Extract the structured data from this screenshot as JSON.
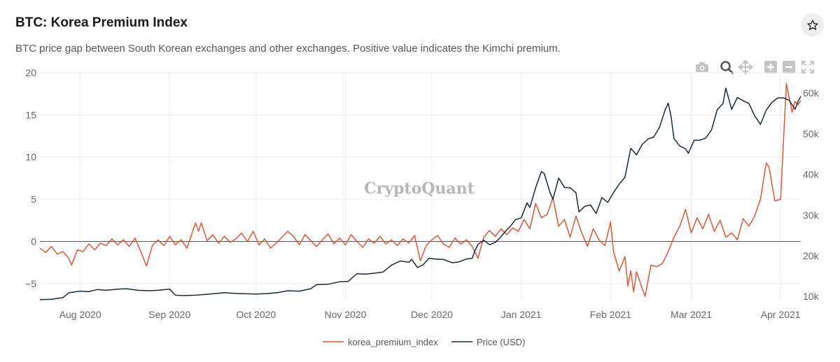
{
  "header": {
    "title": "BTC: Korea Premium Index",
    "subtitle": "BTC price gap between South Korean exchanges and other exchanges. Positive value indicates the Kimchi premium."
  },
  "icons": {
    "favorite": "star-icon",
    "toolbar": [
      "camera-icon",
      "zoom-icon",
      "pan-icon",
      "zoom-in-icon",
      "zoom-out-icon",
      "autoscale-icon"
    ]
  },
  "colors": {
    "premium": "#d9583b",
    "price": "#1c2833",
    "grid": "#ececec",
    "zero_line": "#555555",
    "axis_text": "#666666"
  },
  "watermark": "CryptoQuant",
  "chart_data": {
    "type": "line",
    "x_start": "2020-07-18",
    "x_end": "2021-04-08",
    "x_ticks": [
      {
        "date": "2020-08-01",
        "label": "Aug 2020"
      },
      {
        "date": "2020-09-01",
        "label": "Sep 2020"
      },
      {
        "date": "2020-10-01",
        "label": "Oct 2020"
      },
      {
        "date": "2020-11-01",
        "label": "Nov 2020"
      },
      {
        "date": "2020-12-01",
        "label": "Dec 2020"
      },
      {
        "date": "2021-01-01",
        "label": "Jan 2021"
      },
      {
        "date": "2021-02-01",
        "label": "Feb 2021"
      },
      {
        "date": "2021-03-01",
        "label": "Mar 2021"
      },
      {
        "date": "2021-04-01",
        "label": "Apr 2021"
      }
    ],
    "y_left": {
      "range": [
        -7,
        20
      ],
      "ticks": [
        20,
        15,
        10,
        5,
        0,
        -5
      ],
      "tick_labels": [
        "20",
        "15",
        "10",
        "5",
        "0",
        "−5"
      ]
    },
    "y_right": {
      "range": [
        9000,
        65000
      ],
      "ticks": [
        60000,
        50000,
        40000,
        30000,
        20000,
        10000
      ],
      "tick_labels": [
        "60k",
        "50k",
        "40k",
        "30k",
        "20k",
        "10k"
      ]
    },
    "legend": {
      "placement": "bottom-center"
    },
    "series": [
      {
        "name": "korea_premium_index",
        "axis": "left",
        "points": [
          [
            "2020-07-18",
            -0.8
          ],
          [
            "2020-07-20",
            -1.3
          ],
          [
            "2020-07-22",
            -0.6
          ],
          [
            "2020-07-24",
            -1.5
          ],
          [
            "2020-07-26",
            -1.2
          ],
          [
            "2020-07-28",
            -2.0
          ],
          [
            "2020-07-29",
            -2.8
          ],
          [
            "2020-07-31",
            -1.0
          ],
          [
            "2020-08-02",
            -1.2
          ],
          [
            "2020-08-04",
            -0.3
          ],
          [
            "2020-08-06",
            -1.0
          ],
          [
            "2020-08-08",
            -0.2
          ],
          [
            "2020-08-10",
            -0.5
          ],
          [
            "2020-08-12",
            0.3
          ],
          [
            "2020-08-14",
            -0.4
          ],
          [
            "2020-08-16",
            0.2
          ],
          [
            "2020-08-18",
            -0.6
          ],
          [
            "2020-08-20",
            0.4
          ],
          [
            "2020-08-22",
            -1.2
          ],
          [
            "2020-08-24",
            -2.9
          ],
          [
            "2020-08-26",
            -0.5
          ],
          [
            "2020-08-28",
            0.2
          ],
          [
            "2020-08-30",
            -0.5
          ],
          [
            "2020-09-01",
            0.6
          ],
          [
            "2020-09-03",
            -0.4
          ],
          [
            "2020-09-05",
            0.2
          ],
          [
            "2020-09-07",
            -0.8
          ],
          [
            "2020-09-09",
            1.2
          ],
          [
            "2020-09-10",
            2.2
          ],
          [
            "2020-09-11",
            1.2
          ],
          [
            "2020-09-12",
            2.2
          ],
          [
            "2020-09-14",
            0.1
          ],
          [
            "2020-09-16",
            0.8
          ],
          [
            "2020-09-18",
            -0.2
          ],
          [
            "2020-09-20",
            0.6
          ],
          [
            "2020-09-22",
            -0.1
          ],
          [
            "2020-09-24",
            0.3
          ],
          [
            "2020-09-26",
            1.0
          ],
          [
            "2020-09-28",
            0.0
          ],
          [
            "2020-09-30",
            1.2
          ],
          [
            "2020-10-02",
            -0.4
          ],
          [
            "2020-10-04",
            0.3
          ],
          [
            "2020-10-06",
            -0.8
          ],
          [
            "2020-10-08",
            -0.2
          ],
          [
            "2020-10-10",
            0.5
          ],
          [
            "2020-10-12",
            1.2
          ],
          [
            "2020-10-14",
            0.6
          ],
          [
            "2020-10-16",
            -0.4
          ],
          [
            "2020-10-18",
            0.8
          ],
          [
            "2020-10-20",
            0.1
          ],
          [
            "2020-10-22",
            -0.6
          ],
          [
            "2020-10-24",
            0.2
          ],
          [
            "2020-10-26",
            0.9
          ],
          [
            "2020-10-28",
            -0.3
          ],
          [
            "2020-10-30",
            0.4
          ],
          [
            "2020-11-01",
            -0.4
          ],
          [
            "2020-11-03",
            0.8
          ],
          [
            "2020-11-05",
            0.0
          ],
          [
            "2020-11-07",
            -0.7
          ],
          [
            "2020-11-09",
            0.3
          ],
          [
            "2020-11-11",
            -0.2
          ],
          [
            "2020-11-13",
            0.6
          ],
          [
            "2020-11-15",
            -0.3
          ],
          [
            "2020-11-17",
            0.2
          ],
          [
            "2020-11-19",
            -0.5
          ],
          [
            "2020-11-21",
            0.3
          ],
          [
            "2020-11-23",
            -0.2
          ],
          [
            "2020-11-25",
            0.7
          ],
          [
            "2020-11-27",
            -2.3
          ],
          [
            "2020-11-29",
            -0.5
          ],
          [
            "2020-12-01",
            0.2
          ],
          [
            "2020-12-03",
            0.7
          ],
          [
            "2020-12-05",
            -0.3
          ],
          [
            "2020-12-07",
            -0.7
          ],
          [
            "2020-12-09",
            0.4
          ],
          [
            "2020-12-11",
            -0.3
          ],
          [
            "2020-12-13",
            0.2
          ],
          [
            "2020-12-15",
            -0.6
          ],
          [
            "2020-12-17",
            -2.0
          ],
          [
            "2020-12-19",
            0.5
          ],
          [
            "2020-12-21",
            1.3
          ],
          [
            "2020-12-23",
            0.6
          ],
          [
            "2020-12-25",
            1.5
          ],
          [
            "2020-12-27",
            0.8
          ],
          [
            "2020-12-29",
            1.6
          ],
          [
            "2020-12-31",
            1.2
          ],
          [
            "2021-01-02",
            2.6
          ],
          [
            "2021-01-04",
            1.5
          ],
          [
            "2021-01-06",
            4.5
          ],
          [
            "2021-01-08",
            2.8
          ],
          [
            "2021-01-10",
            3.2
          ],
          [
            "2021-01-12",
            5.2
          ],
          [
            "2021-01-14",
            1.8
          ],
          [
            "2021-01-16",
            2.6
          ],
          [
            "2021-01-18",
            0.5
          ],
          [
            "2021-01-20",
            3.0
          ],
          [
            "2021-01-22",
            1.0
          ],
          [
            "2021-01-24",
            -0.6
          ],
          [
            "2021-01-26",
            1.5
          ],
          [
            "2021-01-28",
            0.2
          ],
          [
            "2021-01-30",
            -0.5
          ],
          [
            "2021-02-01",
            2.3
          ],
          [
            "2021-02-02",
            -1.2
          ],
          [
            "2021-02-04",
            -3.5
          ],
          [
            "2021-02-06",
            -1.8
          ],
          [
            "2021-02-07",
            -5.3
          ],
          [
            "2021-02-08",
            -3.5
          ],
          [
            "2021-02-09",
            -6.0
          ],
          [
            "2021-02-10",
            -3.6
          ],
          [
            "2021-02-12",
            -5.6
          ],
          [
            "2021-02-13",
            -6.5
          ],
          [
            "2021-02-15",
            -2.8
          ],
          [
            "2021-02-17",
            -3.0
          ],
          [
            "2021-02-19",
            -2.6
          ],
          [
            "2021-02-21",
            -1.2
          ],
          [
            "2021-02-23",
            0.5
          ],
          [
            "2021-02-25",
            1.8
          ],
          [
            "2021-02-27",
            3.8
          ],
          [
            "2021-03-01",
            1.0
          ],
          [
            "2021-03-03",
            2.8
          ],
          [
            "2021-03-05",
            1.5
          ],
          [
            "2021-03-07",
            3.2
          ],
          [
            "2021-03-09",
            1.2
          ],
          [
            "2021-03-11",
            2.5
          ],
          [
            "2021-03-13",
            0.5
          ],
          [
            "2021-03-15",
            1.0
          ],
          [
            "2021-03-17",
            0.2
          ],
          [
            "2021-03-19",
            2.7
          ],
          [
            "2021-03-21",
            1.8
          ],
          [
            "2021-03-23",
            3.0
          ],
          [
            "2021-03-25",
            5.0
          ],
          [
            "2021-03-27",
            9.3
          ],
          [
            "2021-03-28",
            8.8
          ],
          [
            "2021-03-30",
            4.8
          ],
          [
            "2021-04-01",
            5.0
          ],
          [
            "2021-04-02",
            12.0
          ],
          [
            "2021-04-03",
            18.7
          ],
          [
            "2021-04-04",
            17.0
          ],
          [
            "2021-04-05",
            15.3
          ],
          [
            "2021-04-06",
            16.6
          ],
          [
            "2021-04-07",
            16.2
          ],
          [
            "2021-04-08",
            16.7
          ]
        ]
      },
      {
        "name": "Price (USD)",
        "axis": "right",
        "points": [
          [
            "2020-07-18",
            9200
          ],
          [
            "2020-07-22",
            9300
          ],
          [
            "2020-07-26",
            9700
          ],
          [
            "2020-07-28",
            10900
          ],
          [
            "2020-08-01",
            11300
          ],
          [
            "2020-08-04",
            11200
          ],
          [
            "2020-08-07",
            11700
          ],
          [
            "2020-08-10",
            11500
          ],
          [
            "2020-08-14",
            11800
          ],
          [
            "2020-08-17",
            11900
          ],
          [
            "2020-08-21",
            11500
          ],
          [
            "2020-08-25",
            11400
          ],
          [
            "2020-08-28",
            11500
          ],
          [
            "2020-09-01",
            11800
          ],
          [
            "2020-09-03",
            10300
          ],
          [
            "2020-09-06",
            10200
          ],
          [
            "2020-09-10",
            10300
          ],
          [
            "2020-09-15",
            10600
          ],
          [
            "2020-09-20",
            10900
          ],
          [
            "2020-09-25",
            10700
          ],
          [
            "2020-10-01",
            10600
          ],
          [
            "2020-10-05",
            10700
          ],
          [
            "2020-10-09",
            11000
          ],
          [
            "2020-10-12",
            11400
          ],
          [
            "2020-10-16",
            11300
          ],
          [
            "2020-10-20",
            11900
          ],
          [
            "2020-10-22",
            12900
          ],
          [
            "2020-10-26",
            13000
          ],
          [
            "2020-10-30",
            13600
          ],
          [
            "2020-11-02",
            13700
          ],
          [
            "2020-11-05",
            15600
          ],
          [
            "2020-11-08",
            15500
          ],
          [
            "2020-11-11",
            15700
          ],
          [
            "2020-11-14",
            16000
          ],
          [
            "2020-11-17",
            17700
          ],
          [
            "2020-11-20",
            18700
          ],
          [
            "2020-11-23",
            18400
          ],
          [
            "2020-11-24",
            19100
          ],
          [
            "2020-11-26",
            17100
          ],
          [
            "2020-11-28",
            17800
          ],
          [
            "2020-11-30",
            19400
          ],
          [
            "2020-12-02",
            19200
          ],
          [
            "2020-12-05",
            19100
          ],
          [
            "2020-12-08",
            18300
          ],
          [
            "2020-12-10",
            18400
          ],
          [
            "2020-12-13",
            19200
          ],
          [
            "2020-12-15",
            19400
          ],
          [
            "2020-12-16",
            21300
          ],
          [
            "2020-12-17",
            22800
          ],
          [
            "2020-12-19",
            23800
          ],
          [
            "2020-12-21",
            22700
          ],
          [
            "2020-12-23",
            23300
          ],
          [
            "2020-12-25",
            24700
          ],
          [
            "2020-12-27",
            26400
          ],
          [
            "2020-12-28",
            27000
          ],
          [
            "2020-12-30",
            28900
          ],
          [
            "2021-01-01",
            29300
          ],
          [
            "2021-01-03",
            33000
          ],
          [
            "2021-01-04",
            31900
          ],
          [
            "2021-01-06",
            36700
          ],
          [
            "2021-01-08",
            40700
          ],
          [
            "2021-01-09",
            40200
          ],
          [
            "2021-01-11",
            35500
          ],
          [
            "2021-01-12",
            33900
          ],
          [
            "2021-01-14",
            39100
          ],
          [
            "2021-01-16",
            36800
          ],
          [
            "2021-01-18",
            36700
          ],
          [
            "2021-01-20",
            35500
          ],
          [
            "2021-01-21",
            30800
          ],
          [
            "2021-01-23",
            32100
          ],
          [
            "2021-01-25",
            32500
          ],
          [
            "2021-01-27",
            30400
          ],
          [
            "2021-01-29",
            34300
          ],
          [
            "2021-01-31",
            33100
          ],
          [
            "2021-02-02",
            35500
          ],
          [
            "2021-02-04",
            37600
          ],
          [
            "2021-02-06",
            39300
          ],
          [
            "2021-02-08",
            46400
          ],
          [
            "2021-02-10",
            44800
          ],
          [
            "2021-02-12",
            47400
          ],
          [
            "2021-02-14",
            48700
          ],
          [
            "2021-02-16",
            49200
          ],
          [
            "2021-02-18",
            51600
          ],
          [
            "2021-02-20",
            56000
          ],
          [
            "2021-02-21",
            57500
          ],
          [
            "2021-02-22",
            54200
          ],
          [
            "2021-02-23",
            48800
          ],
          [
            "2021-02-25",
            47000
          ],
          [
            "2021-02-27",
            46300
          ],
          [
            "2021-02-28",
            45200
          ],
          [
            "2021-03-02",
            48400
          ],
          [
            "2021-03-04",
            48400
          ],
          [
            "2021-03-06",
            48900
          ],
          [
            "2021-03-08",
            50900
          ],
          [
            "2021-03-10",
            55900
          ],
          [
            "2021-03-12",
            57400
          ],
          [
            "2021-03-13",
            61200
          ],
          [
            "2021-03-15",
            56000
          ],
          [
            "2021-03-17",
            58900
          ],
          [
            "2021-03-19",
            58100
          ],
          [
            "2021-03-21",
            57400
          ],
          [
            "2021-03-23",
            54400
          ],
          [
            "2021-03-25",
            52300
          ],
          [
            "2021-03-27",
            55800
          ],
          [
            "2021-03-29",
            57700
          ],
          [
            "2021-03-31",
            58800
          ],
          [
            "2021-04-02",
            58800
          ],
          [
            "2021-04-04",
            58200
          ],
          [
            "2021-04-06",
            56000
          ],
          [
            "2021-04-07",
            57900
          ],
          [
            "2021-04-08",
            59200
          ]
        ]
      }
    ]
  }
}
